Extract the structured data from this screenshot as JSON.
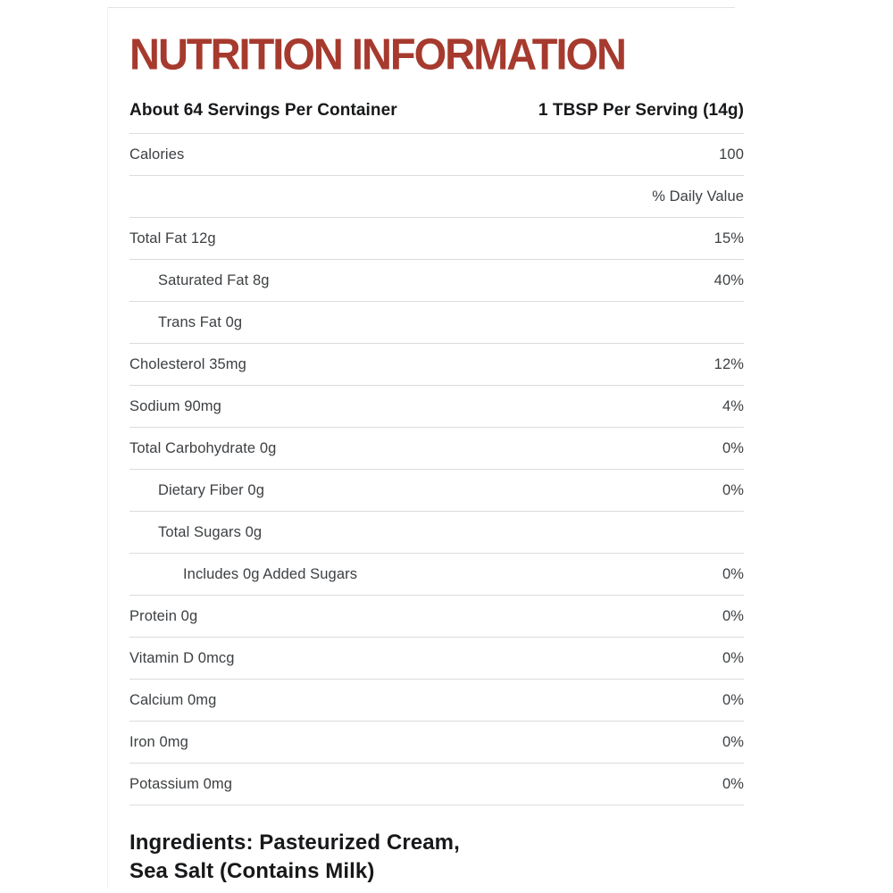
{
  "colors": {
    "title": "#A63A2E",
    "heading_text": "#17181A",
    "row_text": "#3D4043",
    "divider": "#DCDCDC",
    "background": "#FFFFFF"
  },
  "title": "NUTRITION INFORMATION",
  "serving_header": {
    "servings_per_container": "About 64 Servings Per Container",
    "serving_size": "1 TBSP Per Serving (14g)"
  },
  "table": {
    "rows": [
      {
        "label": "Calories",
        "value": "100",
        "indent": 0
      },
      {
        "label": "",
        "value": "% Daily Value",
        "indent": 0
      },
      {
        "label": "Total Fat 12g",
        "value": "15%",
        "indent": 0
      },
      {
        "label": "Saturated Fat 8g",
        "value": "40%",
        "indent": 1
      },
      {
        "label": "Trans Fat 0g",
        "value": "",
        "indent": 1
      },
      {
        "label": "Cholesterol 35mg",
        "value": "12%",
        "indent": 0
      },
      {
        "label": "Sodium 90mg",
        "value": "4%",
        "indent": 0
      },
      {
        "label": "Total Carbohydrate 0g",
        "value": "0%",
        "indent": 0
      },
      {
        "label": "Dietary Fiber 0g",
        "value": "0%",
        "indent": 1
      },
      {
        "label": "Total Sugars 0g",
        "value": "",
        "indent": 1
      },
      {
        "label": "Includes 0g Added Sugars",
        "value": "0%",
        "indent": 2
      },
      {
        "label": "Protein 0g",
        "value": "0%",
        "indent": 0
      },
      {
        "label": "Vitamin D 0mcg",
        "value": "0%",
        "indent": 0
      },
      {
        "label": "Calcium 0mg",
        "value": "0%",
        "indent": 0
      },
      {
        "label": "Iron 0mg",
        "value": "0%",
        "indent": 0
      },
      {
        "label": "Potassium 0mg",
        "value": "0%",
        "indent": 0
      }
    ]
  },
  "ingredients": {
    "line1": "Ingredients: Pasteurized Cream,",
    "line2": "Sea Salt (Contains Milk)"
  }
}
